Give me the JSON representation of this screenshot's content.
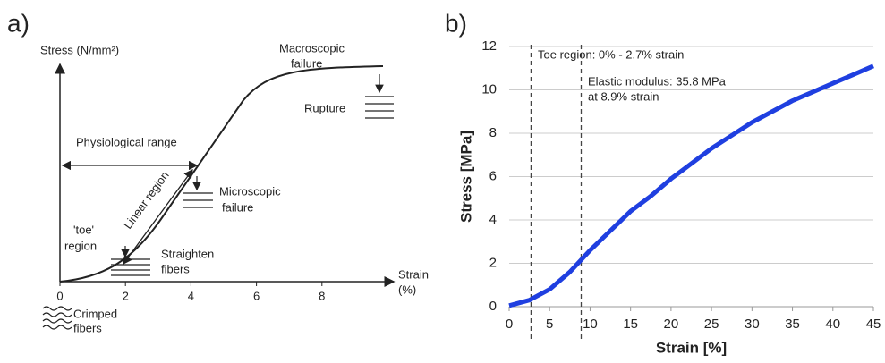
{
  "chart_data": [
    {
      "type": "schematic",
      "label": "a)",
      "ylabel": "Stress (N/mm²)",
      "xlabel": "Strain",
      "xunit": "(%)",
      "xlim": [
        0,
        10
      ],
      "xticks": [
        0,
        2,
        4,
        6,
        8
      ],
      "annotations": [
        "Macroscopic",
        "failure",
        "Rupture",
        "Physiological range",
        "Linear region",
        "Microscopic",
        "failure",
        "'toe'",
        "region",
        "Straighten",
        "fibers",
        "Crimped",
        "fibers"
      ]
    },
    {
      "type": "line",
      "label": "b)",
      "xlabel": "Strain [%]",
      "ylabel": "Stress [MPa]",
      "x": [
        0,
        2.5,
        5,
        7.5,
        10,
        12.5,
        15,
        17.5,
        20,
        22.5,
        25,
        27.5,
        30,
        32.5,
        35,
        37.5,
        40,
        42.5,
        45
      ],
      "series": [
        {
          "color": "#1f3fe0",
          "values": [
            0.05,
            0.3,
            0.8,
            1.6,
            2.6,
            3.5,
            4.4,
            5.1,
            5.9,
            6.6,
            7.3,
            7.9,
            8.5,
            9.0,
            9.5,
            9.9,
            10.3,
            10.7,
            11.1
          ]
        }
      ],
      "xlim": [
        0,
        45
      ],
      "xticks": [
        0,
        5,
        10,
        15,
        20,
        25,
        30,
        35,
        40,
        45
      ],
      "ylim": [
        0,
        12
      ],
      "yticks": [
        0,
        2,
        4,
        6,
        8,
        10,
        12
      ],
      "grid": true,
      "vlines": [
        2.7,
        8.9
      ],
      "annotations": [
        "Toe region: 0% - 2.7% strain",
        "Elastic modulus: 35.8 MPa",
        "at 8.9% strain"
      ]
    }
  ]
}
